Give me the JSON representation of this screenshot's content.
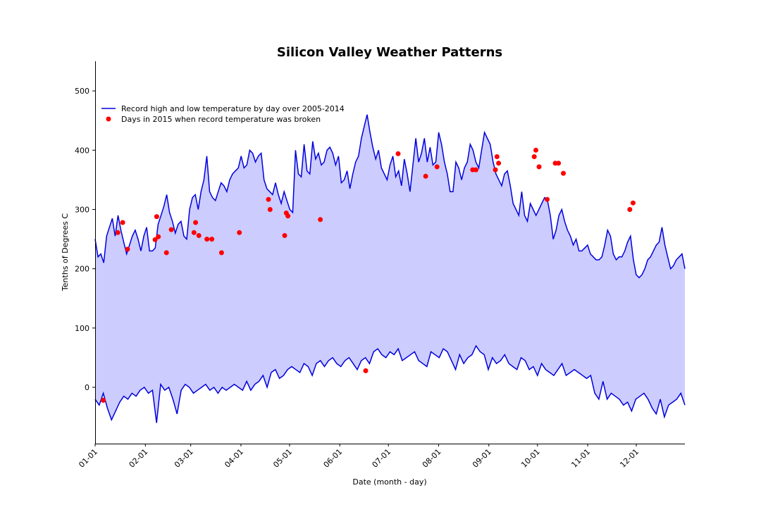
{
  "chart_data": {
    "type": "line",
    "title": "Silicon Valley Weather Patterns",
    "xlabel": "Date (month - day)",
    "ylabel": "Tenths of Degrees C",
    "x_ticks": [
      "01-01",
      "02-01",
      "03-01",
      "04-01",
      "05-01",
      "06-01",
      "07-01",
      "08-01",
      "09-01",
      "10-01",
      "11-01",
      "12-01"
    ],
    "y_ticks": [
      0,
      100,
      200,
      300,
      400,
      500
    ],
    "xlim": [
      "01-01",
      "12-31"
    ],
    "ylim": [
      -95,
      550
    ],
    "grid": false,
    "legend": {
      "placement": "upper-left"
    },
    "colors": {
      "line": "#0000dd",
      "fill": "#ccccff",
      "points": "#ff0000"
    },
    "series": [
      {
        "name": "Record high and low temperature by day over 2005-2014",
        "kind": "high",
        "x_step": 5,
        "values": [
          250,
          220,
          225,
          210,
          255,
          270,
          285,
          255,
          290,
          265,
          245,
          225,
          240,
          255,
          265,
          250,
          230,
          255,
          270,
          230,
          230,
          235,
          275,
          290,
          305,
          325,
          295,
          280,
          260,
          275,
          280,
          255,
          250,
          300,
          320,
          325,
          300,
          330,
          350,
          390,
          330,
          320,
          315,
          330,
          345,
          340,
          330,
          350,
          360,
          365,
          370,
          390,
          370,
          375,
          400,
          395,
          380,
          390,
          395,
          350,
          335,
          330,
          325,
          345,
          325,
          310,
          330,
          315,
          300,
          295,
          400,
          360,
          355,
          410,
          365,
          360,
          415,
          385,
          395,
          375,
          380,
          400,
          405,
          395,
          375,
          390,
          345,
          350,
          365,
          335,
          360,
          380,
          390,
          420,
          440,
          460,
          430,
          405,
          385,
          400,
          370,
          360,
          350,
          375,
          390,
          355,
          365,
          340,
          385,
          360,
          330,
          375,
          420,
          380,
          395,
          420,
          380,
          405,
          375,
          380,
          430,
          410,
          380,
          360,
          330,
          330,
          380,
          370,
          350,
          370,
          380,
          410,
          400,
          380,
          370,
          400,
          430,
          420,
          410,
          380,
          360,
          350,
          340,
          360,
          365,
          340,
          310,
          300,
          290,
          330,
          290,
          280,
          310,
          300,
          290,
          300,
          310,
          320,
          315,
          290,
          250,
          265,
          290,
          300,
          280,
          265,
          255,
          240,
          250,
          230,
          230,
          235,
          240,
          225,
          220,
          215,
          215,
          220,
          240,
          265,
          255,
          225,
          215,
          220,
          220,
          230,
          245,
          255,
          215,
          190,
          185,
          190,
          200,
          215,
          220,
          230,
          240,
          245,
          270,
          240,
          220,
          200,
          205,
          215,
          220,
          225,
          200
        ],
        "x_step_note": "",
        "end_day": 365
      },
      {
        "name": "",
        "kind": "low",
        "x_step": 5,
        "values": [
          -20,
          -30,
          -10,
          -35,
          -55,
          -40,
          -25,
          -15,
          -20,
          -10,
          -15,
          -5,
          0,
          -10,
          -5,
          -60,
          5,
          -5,
          0,
          -20,
          -45,
          -5,
          5,
          0,
          -10,
          -5,
          0,
          5,
          -5,
          0,
          -10,
          0,
          -5,
          0,
          5,
          0,
          -5,
          10,
          -5,
          5,
          10,
          20,
          0,
          25,
          30,
          15,
          20,
          30,
          35,
          30,
          25,
          40,
          35,
          20,
          40,
          45,
          35,
          45,
          50,
          40,
          35,
          45,
          50,
          40,
          30,
          45,
          50,
          40,
          60,
          65,
          55,
          50,
          60,
          55,
          65,
          45,
          50,
          55,
          60,
          45,
          40,
          35,
          60,
          55,
          50,
          65,
          60,
          45,
          30,
          55,
          40,
          50,
          55,
          70,
          60,
          55,
          30,
          50,
          40,
          45,
          55,
          40,
          35,
          30,
          50,
          45,
          30,
          35,
          20,
          40,
          30,
          25,
          20,
          30,
          40,
          20,
          25,
          30,
          25,
          20,
          15,
          20,
          -10,
          -20,
          10,
          -20,
          -10,
          -15,
          -20,
          -30,
          -25,
          -40,
          -20,
          -15,
          -10,
          -20,
          -35,
          -45,
          -20,
          -50,
          -30,
          -25,
          -20,
          -10,
          -30
        ],
        "end_day": 365
      },
      {
        "name": "Days in 2015 when record temperature was broken",
        "kind": "scatter",
        "points": [
          {
            "x": 6,
            "y": -22
          },
          {
            "x": 15,
            "y": 261
          },
          {
            "x": 18,
            "y": 278
          },
          {
            "x": 21,
            "y": 233
          },
          {
            "x": 38,
            "y": 249
          },
          {
            "x": 39,
            "y": 288
          },
          {
            "x": 40,
            "y": 254
          },
          {
            "x": 45,
            "y": 227
          },
          {
            "x": 48,
            "y": 266
          },
          {
            "x": 62,
            "y": 261
          },
          {
            "x": 63,
            "y": 278
          },
          {
            "x": 65,
            "y": 256
          },
          {
            "x": 70,
            "y": 250
          },
          {
            "x": 73,
            "y": 250
          },
          {
            "x": 79,
            "y": 227
          },
          {
            "x": 90,
            "y": 261
          },
          {
            "x": 108,
            "y": 317
          },
          {
            "x": 109,
            "y": 300
          },
          {
            "x": 118,
            "y": 256
          },
          {
            "x": 119,
            "y": 294
          },
          {
            "x": 120,
            "y": 289
          },
          {
            "x": 140,
            "y": 283
          },
          {
            "x": 168,
            "y": 28
          },
          {
            "x": 188,
            "y": 394
          },
          {
            "x": 205,
            "y": 356
          },
          {
            "x": 212,
            "y": 372
          },
          {
            "x": 234,
            "y": 367
          },
          {
            "x": 236,
            "y": 367
          },
          {
            "x": 248,
            "y": 367
          },
          {
            "x": 249,
            "y": 389
          },
          {
            "x": 250,
            "y": 378
          },
          {
            "x": 272,
            "y": 389
          },
          {
            "x": 273,
            "y": 400
          },
          {
            "x": 275,
            "y": 372
          },
          {
            "x": 280,
            "y": 317
          },
          {
            "x": 285,
            "y": 378
          },
          {
            "x": 287,
            "y": 378
          },
          {
            "x": 290,
            "y": 361
          },
          {
            "x": 331,
            "y": 300
          },
          {
            "x": 333,
            "y": 311
          }
        ]
      }
    ]
  }
}
